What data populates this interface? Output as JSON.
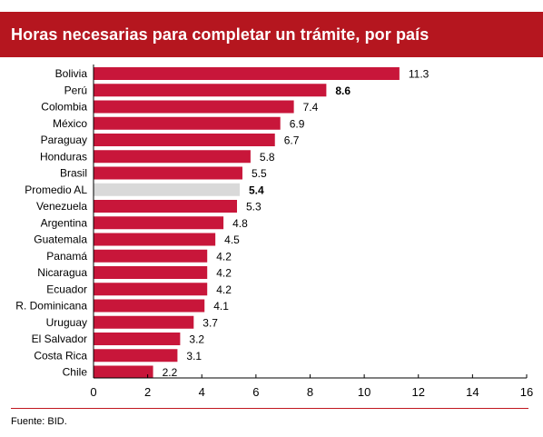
{
  "header": {
    "title": "Horas necesarias para completar un trámite, por país"
  },
  "footer": {
    "source": "Fuente: BID."
  },
  "colors": {
    "bar": "#c8163a",
    "highlight": "#d9d9d9",
    "title_bg": "#b5161f",
    "axis": "#000000"
  },
  "chart_data": {
    "type": "bar",
    "orientation": "horizontal",
    "title": "Horas necesarias para completar un trámite, por país",
    "categories": [
      "Bolivia",
      "Perú",
      "Colombia",
      "México",
      "Paraguay",
      "Honduras",
      "Brasil",
      "Promedio AL",
      "Venezuela",
      "Argentina",
      "Guatemala",
      "Panamá",
      "Nicaragua",
      "Ecuador",
      "R. Dominicana",
      "Uruguay",
      "El Salvador",
      "Costa Rica",
      "Chile"
    ],
    "values": [
      11.3,
      8.6,
      7.4,
      6.9,
      6.7,
      5.8,
      5.5,
      5.4,
      5.3,
      4.8,
      4.5,
      4.2,
      4.2,
      4.2,
      4.1,
      3.7,
      3.2,
      3.1,
      2.2
    ],
    "value_labels": [
      "11.3",
      "8.6",
      "7.4",
      "6.9",
      "6.7",
      "5.8",
      "5.5",
      "5.4",
      "5.3",
      "4.8",
      "4.5",
      "4.2",
      "4.2",
      "4.2",
      "4.1",
      "3.7",
      "3.2",
      "3.1",
      "2.2"
    ],
    "bold_labels": [
      "Perú",
      "Promedio AL"
    ],
    "highlight_category": "Promedio AL",
    "xlim": [
      0,
      16
    ],
    "xticks": [
      0,
      2,
      4,
      6,
      8,
      10,
      12,
      14,
      16
    ],
    "xtick_labels": [
      "0",
      "2",
      "4",
      "6",
      "8",
      "10",
      "12",
      "14",
      "16"
    ],
    "xlabel": "",
    "ylabel": "",
    "grid": false
  }
}
